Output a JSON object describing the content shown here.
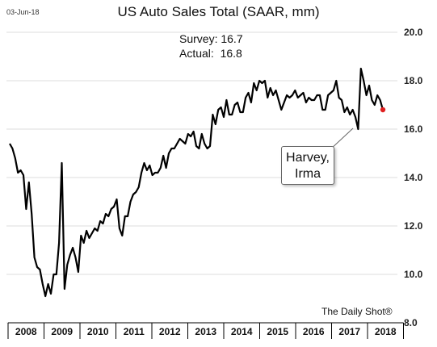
{
  "header": {
    "date": "03-Jun-18",
    "title": "US Auto Sales Total (SAAR, mm)",
    "survey": "Survey: 16.7",
    "actual": "Actual:  16.8"
  },
  "annotation": {
    "line1": "Harvey,",
    "line2": "Irma"
  },
  "source": "The Daily Shot®",
  "colors": {
    "line": "#000000",
    "last_point": "#e02020",
    "grid": "#dddddd"
  },
  "chart_data": {
    "type": "line",
    "title": "US Auto Sales Total (SAAR, mm)",
    "xlabel": "",
    "ylabel": "",
    "ylim": [
      8.0,
      20.0
    ],
    "yticks": [
      "8.0",
      "10.0",
      "12.0",
      "14.0",
      "16.0",
      "18.0",
      "20.0"
    ],
    "xticks": [
      "2008",
      "2009",
      "2010",
      "2011",
      "2012",
      "2013",
      "2014",
      "2015",
      "2016",
      "2017",
      "2018"
    ],
    "y_axis_position": "right",
    "grid": "horizontal",
    "x_start": "2008-01",
    "frequency": "monthly",
    "series": [
      {
        "values": [
          15.4,
          15.2,
          14.8,
          14.2,
          14.3,
          14.1,
          12.7,
          13.8,
          12.5,
          10.7,
          10.3,
          10.2,
          9.6,
          9.1,
          9.6,
          9.2,
          10.0,
          10.0,
          11.3,
          14.6,
          9.4,
          10.4,
          10.8,
          11.1,
          10.7,
          10.1,
          11.6,
          11.3,
          11.8,
          11.5,
          11.7,
          11.9,
          11.8,
          12.2,
          12.1,
          12.5,
          12.4,
          12.7,
          12.8,
          13.1,
          11.9,
          11.6,
          12.4,
          12.4,
          13.0,
          13.3,
          13.4,
          13.6,
          14.2,
          14.6,
          14.3,
          14.5,
          14.1,
          14.2,
          14.2,
          14.4,
          14.9,
          14.4,
          15.0,
          15.2,
          15.2,
          15.4,
          15.6,
          15.5,
          15.4,
          15.8,
          15.7,
          15.9,
          15.3,
          15.2,
          15.8,
          15.4,
          15.2,
          15.3,
          16.6,
          16.2,
          16.8,
          16.9,
          16.5,
          17.2,
          16.6,
          16.6,
          17.0,
          17.1,
          16.7,
          16.7,
          17.3,
          17.5,
          17.1,
          17.9,
          17.6,
          18.0,
          17.9,
          18.0,
          17.3,
          17.7,
          17.4,
          17.6,
          17.2,
          16.8,
          17.1,
          17.4,
          17.3,
          17.4,
          17.6,
          17.3,
          17.4,
          17.5,
          17.1,
          17.3,
          17.2,
          17.2,
          17.4,
          17.4,
          16.8,
          16.8,
          17.4,
          17.5,
          17.6,
          18.0,
          17.3,
          17.2,
          16.7,
          16.9,
          16.6,
          16.8,
          16.5,
          16.0,
          18.5,
          18.0,
          17.4,
          17.8,
          17.2,
          17.0,
          17.4,
          17.2,
          16.8
        ]
      }
    ]
  }
}
